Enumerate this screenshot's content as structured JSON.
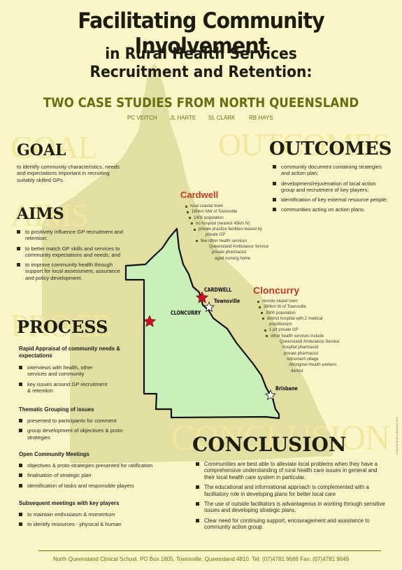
{
  "title": "Facilitating Community Involvement",
  "title_line2": "in Rural Health Services",
  "title_line3": "Recruitment and Retention:",
  "subtitle": "TWO CASE STUDIES FROM NORTH QUEENSLAND",
  "authors": [
    "PC VEITCH",
    "JL HARTE",
    "SL CLARK",
    "RB HAYS"
  ],
  "colors": {
    "background": "#fbf6c8",
    "ghost_map": "#e3dfa2",
    "inset_map": "#c9f0b8",
    "accent_red": "#c23a22",
    "olive": "#6b6c10"
  },
  "goal": {
    "ghost": "GOAL",
    "heading": "GOAL",
    "text": "to identify community characteristics, needs and expectations important in recruiting suitably skilled GPs."
  },
  "aims": {
    "ghost": "AIMS",
    "heading": "AIMS",
    "items": [
      "to positively influence GP recruitment and retention;",
      "to better match GP skills and services to community expectations and needs; and",
      "to improve community health through support for local assessment, assurance and policy development."
    ]
  },
  "process": {
    "ghost": "PROCE",
    "heading": "PROCESS",
    "groups": [
      {
        "title": "Rapid Appraisal of community needs & expectations",
        "items": [
          "interviews with health, other services and community",
          "key issues around GP recruitment & retention"
        ]
      },
      {
        "title": "Thematic Grouping of issues",
        "items": [
          "presented to participants for comment",
          "group development of objectives & proto-strategies"
        ]
      },
      {
        "title": "Open Community Meetings",
        "items": [
          "objectives & proto-strategies presented for ratification",
          "finalisation of strategic plan",
          "identification of tasks and responsible players"
        ]
      },
      {
        "title": "Subsequent meetings with key players",
        "items": [
          "to maintain enthusiasm & momentum",
          "to identify resources - physical & human"
        ]
      }
    ]
  },
  "outcomes": {
    "ghost": "OUTCOMES",
    "heading": "OUTCOMES",
    "items": [
      "community document containing strategies and action plan;",
      "development/rejuvenation of local action group and recruitment of key players;",
      "identification of key external resource people;",
      "communities acting on action plans."
    ]
  },
  "cardwell": {
    "heading": "Cardwell",
    "lines": [
      {
        "t": "rural coastal town",
        "b": true
      },
      {
        "t": "160km NW of Townsville",
        "b": true
      },
      {
        "t": "1400 population",
        "b": true
      },
      {
        "t": "no hospital (nearest 45km N)",
        "b": true
      },
      {
        "t": "private practice facilities leased by",
        "b": true
      },
      {
        "t": "private GP",
        "b": false
      },
      {
        "t": "few other health services",
        "b": true
      },
      {
        "t": "Queensland Ambulance Service",
        "b": false
      },
      {
        "t": "private pharmacist",
        "b": false
      },
      {
        "t": "aged nursing home",
        "b": false
      }
    ]
  },
  "cloncurry": {
    "heading": "Cloncurry",
    "lines": [
      {
        "t": "remote inland town",
        "b": true
      },
      {
        "t": "380km W of Townsville",
        "b": true
      },
      {
        "t": "3900 population",
        "b": true
      },
      {
        "t": "district hospital with 2 medical",
        "b": true
      },
      {
        "t": "practitioners",
        "b": false
      },
      {
        "t": "1 p/t private GP",
        "b": true
      },
      {
        "t": "other health services include",
        "b": true
      },
      {
        "t": "Queensland Ambulance Service",
        "b": false
      },
      {
        "t": "hospital pharmacist",
        "b": false
      },
      {
        "t": "private pharmacist",
        "b": false
      },
      {
        "t": "retirement village",
        "b": false
      },
      {
        "t": "Aboriginal Health workers",
        "b": false
      },
      {
        "t": "dentist",
        "b": false
      }
    ]
  },
  "map_labels": {
    "cardwell": "CARDWELL",
    "townsville": "Townsville",
    "cloncurry": "CLONCURRY",
    "brisbane": "Brisbane"
  },
  "conclusion": {
    "ghost": "CONCLUSION",
    "heading": "CONCLUSION",
    "items": [
      "Communities are best able to alleviate local problems when they have a comprehensive understanding of rural health care issues in general and their local health care system in particular.",
      "The educational and informational approach is complemented with a facilitatory role in developing plans for better local care",
      "The use of outside facilitators is advantageous in working through sensitive issues and developing strategic plans.",
      "Clear need for continuing support, encouragement and assistance to community action group."
    ]
  },
  "footer": "North Queensland Clinical School.  PO Box 1805, Townsville. Queensland  4810.  Tel: (07)4781 9666  Fax: (07)4781 9649",
  "credit": "Printed by Medical Illustration JCU"
}
